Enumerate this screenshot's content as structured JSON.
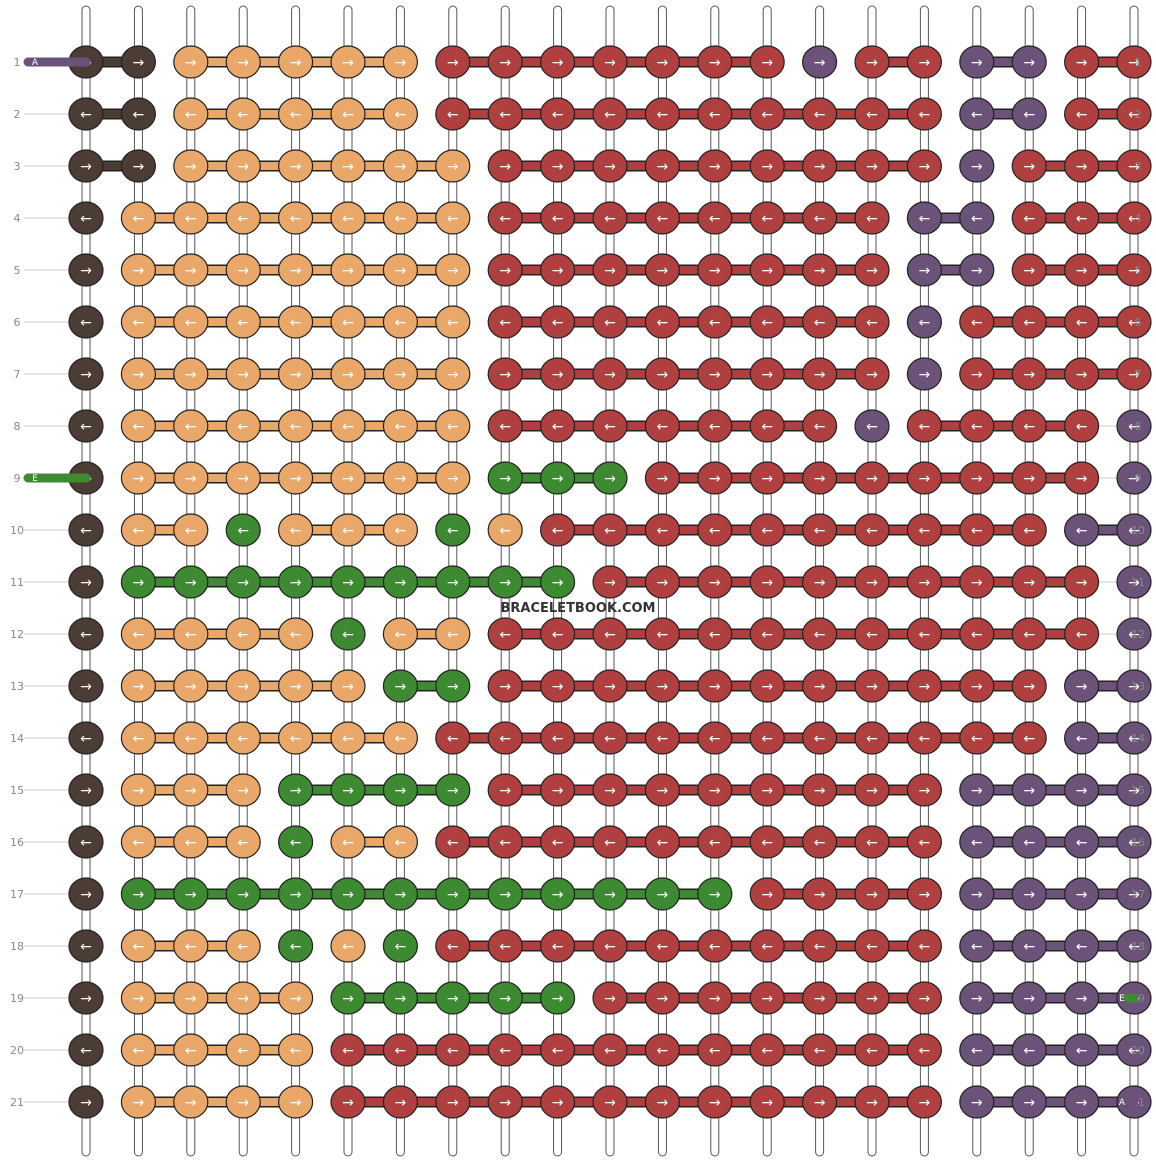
{
  "colors": {
    "A": "#6a5278",
    "B": "#4b3d36",
    "C": "#e9a86a",
    "D": "#b04040",
    "E": "#3d8a33",
    "string_white": "#ffffff",
    "outline": "#222222",
    "label": "#888888",
    "connector": "#cccccc"
  },
  "string_ends": {
    "left_start": "A",
    "right_end": "A",
    "green_left": "E",
    "green_right": "E"
  },
  "row_numbers": [
    "1",
    "2",
    "3",
    "4",
    "5",
    "6",
    "7",
    "8",
    "9",
    "10",
    "11",
    "12",
    "13",
    "14",
    "15",
    "16",
    "17",
    "18",
    "19",
    "20",
    "21"
  ],
  "watermark": "BRACELETBOOK.COM",
  "pattern": [
    "BBCCCCCDDDDDDDADDAADD",
    "BBCCCCCDDDDDDDDDDAADD",
    "BBCCCCCCDDDDDDDDDADDD",
    "BCCCCCCCDDDDDDDDAADDD",
    "BCCCCCCCDDDDDDDDAADDD",
    "BCCCCCCCDDDDDDDDADDDD",
    "BCCCCCCCDDDDDDDDADDDD",
    "BCCCCCCCDDDDDDDADDDDA",
    "BCCCCCCCEEEDDDDDDDDDA",
    "BCCECCCECDDDDDDDDDDAA",
    "BEEEEEEEEEDDDDDDDDDDA",
    "BCCCCECCDDDDDDDDDDDDA",
    "BCCCCCEEDDDDDDDDDDDAA",
    "BCCCCCCDDDDDDDDDDDDAA",
    "BCCCEEEEDDDDDDDDDAAAA",
    "BCCCECCDDDDDDDDDDAAAA",
    "BEEEEEEEEEEEEDDDDAAAA",
    "BCCCECEDDDDDDDDDDAAAA",
    "BCCCCEEEEEDDDDDDDAAAA",
    "BCCCCDDDDDDDDDDDDAAAA",
    "BCCCCDDDDDDDDDDDDAAAA"
  ],
  "knot_directions": [
    "RRRRRRRRRRRRRRRRRRRRR",
    "LLLLLLLLLLLLLLLLLLLLL",
    "RRRRRRRRRRRRRRRRRRRRR",
    "LLLLLLLLLLLLLLLLLLLLL",
    "RRRRRRRRRRRRRRRRRRRRR",
    "LLLLLLLLLLLLLLLLLLLLL",
    "RRRRRRRRRRRRRRRRRRRRR",
    "LLLLLLLLLLLLLLLLLLLLL",
    "RRRRRRRRRRRRRRRRRRRRR",
    "LLLLLLLLLLLLLLLLLLLLL",
    "RRRRRRRRRRRRRRRRRRRRR",
    "LLLLLLLLLLLLLLLLLLLLL",
    "RRRRRRRRRRRRRRRRRRRRR",
    "LLLLLLLLLLLLLLLLLLLLL",
    "RRRRRRRRRRRRRRRRRRRRR",
    "LLLLLLLLLLLLLLLLLLLLL",
    "RRRRRRRRRRRRRRRRRRRRR",
    "LLLLLLLLLLLLLLLLLLLLL",
    "RRRRRRRRRRRRRRRRRRRRR",
    "LLLLLLLLLLLLLLLLLLLLL",
    "RRRRRRRRRRRRRRRRRRRRR"
  ],
  "arrow_glyphs": {
    "R": "→",
    "L": "←"
  }
}
